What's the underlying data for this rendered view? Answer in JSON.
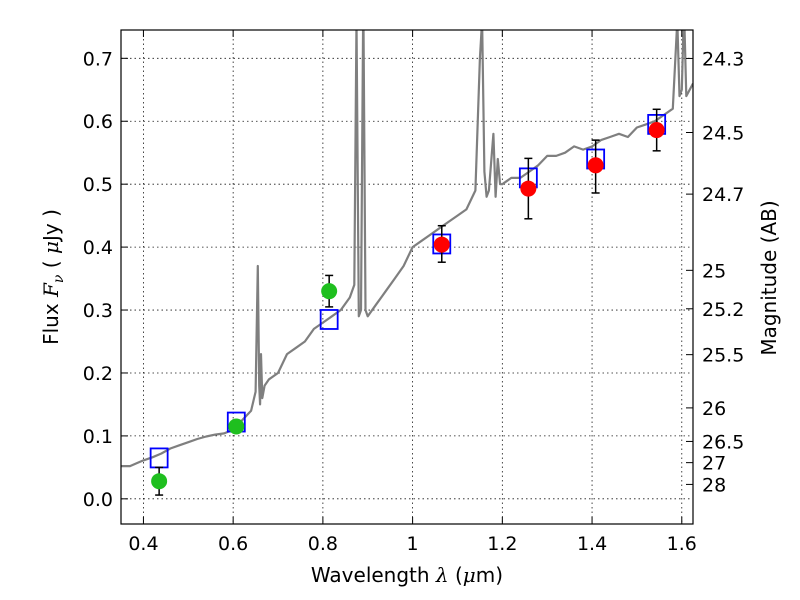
{
  "chart_data": {
    "type": "scatter",
    "xlabel_pre": "Wavelength  ",
    "xlabel_sym": "λ",
    "xlabel_unit_open": " (",
    "xlabel_unit_mu": "μ",
    "xlabel_unit_close": "m)",
    "ylabel_pre": "Flux  ",
    "ylabel_sym": "F",
    "ylabel_sub": "ν",
    "ylabel_unit_open": "  ( ",
    "ylabel_unit_mu": "μ",
    "ylabel_unit_close": "Jy )",
    "y2label": "Magnitude (AB)",
    "xlim": [
      0.35,
      1.625
    ],
    "ylim": [
      -0.04,
      0.745
    ],
    "x_ticks": [
      {
        "value": 0.4,
        "label": "0.4"
      },
      {
        "value": 0.6,
        "label": "0.6"
      },
      {
        "value": 0.8,
        "label": "0.8"
      },
      {
        "value": 1.0,
        "label": "1"
      },
      {
        "value": 1.2,
        "label": "1.2"
      },
      {
        "value": 1.4,
        "label": "1.4"
      },
      {
        "value": 1.6,
        "label": "1.6"
      }
    ],
    "y_ticks": [
      {
        "value": 0.0,
        "label": "0.0"
      },
      {
        "value": 0.1,
        "label": "0.1"
      },
      {
        "value": 0.2,
        "label": "0.2"
      },
      {
        "value": 0.3,
        "label": "0.3"
      },
      {
        "value": 0.4,
        "label": "0.4"
      },
      {
        "value": 0.5,
        "label": "0.5"
      },
      {
        "value": 0.6,
        "label": "0.6"
      },
      {
        "value": 0.7,
        "label": "0.7"
      }
    ],
    "y2_ticks": [
      {
        "label": "24.3",
        "flux": 0.6998
      },
      {
        "label": "24.5",
        "flux": 0.5821
      },
      {
        "label": "24.7",
        "flux": 0.4842
      },
      {
        "label": "25",
        "flux": 0.3631
      },
      {
        "label": "25.2",
        "flux": 0.302
      },
      {
        "label": "25.5",
        "flux": 0.2291
      },
      {
        "label": "26",
        "flux": 0.1445
      },
      {
        "label": "26.5",
        "flux": 0.0912
      },
      {
        "label": "27",
        "flux": 0.0575
      },
      {
        "label": "28",
        "flux": 0.0229
      }
    ],
    "series": [
      {
        "name": "model_spectrum",
        "kind": "line",
        "color": "#7f7f7f",
        "x": [
          0.35,
          0.37,
          0.39,
          0.4,
          0.42,
          0.44,
          0.46,
          0.48,
          0.5,
          0.52,
          0.54,
          0.56,
          0.58,
          0.6,
          0.62,
          0.64,
          0.65,
          0.655,
          0.658,
          0.66,
          0.662,
          0.665,
          0.67,
          0.68,
          0.7,
          0.72,
          0.74,
          0.76,
          0.78,
          0.8,
          0.82,
          0.84,
          0.86,
          0.87,
          0.875,
          0.88,
          0.885,
          0.89,
          0.895,
          0.9,
          0.92,
          0.94,
          0.96,
          0.98,
          1.0,
          1.02,
          1.04,
          1.06,
          1.08,
          1.1,
          1.12,
          1.14,
          1.15,
          1.155,
          1.16,
          1.165,
          1.17,
          1.18,
          1.185,
          1.19,
          1.195,
          1.2,
          1.22,
          1.24,
          1.26,
          1.28,
          1.3,
          1.32,
          1.34,
          1.36,
          1.38,
          1.4,
          1.42,
          1.44,
          1.46,
          1.48,
          1.5,
          1.52,
          1.54,
          1.56,
          1.58,
          1.59,
          1.595,
          1.6,
          1.605,
          1.61,
          1.625
        ],
        "values": [
          0.052,
          0.052,
          0.058,
          0.061,
          0.066,
          0.072,
          0.08,
          0.085,
          0.09,
          0.095,
          0.099,
          0.102,
          0.104,
          0.11,
          0.125,
          0.14,
          0.17,
          0.37,
          0.18,
          0.15,
          0.23,
          0.16,
          0.18,
          0.19,
          0.2,
          0.23,
          0.24,
          0.25,
          0.27,
          0.28,
          0.29,
          0.3,
          0.32,
          0.34,
          0.76,
          0.29,
          0.3,
          0.8,
          0.3,
          0.29,
          0.31,
          0.33,
          0.35,
          0.37,
          0.4,
          0.41,
          0.42,
          0.43,
          0.44,
          0.45,
          0.46,
          0.49,
          0.7,
          0.76,
          0.52,
          0.48,
          0.49,
          0.58,
          0.48,
          0.54,
          0.5,
          0.5,
          0.51,
          0.51,
          0.52,
          0.53,
          0.545,
          0.545,
          0.55,
          0.56,
          0.555,
          0.56,
          0.57,
          0.575,
          0.58,
          0.575,
          0.59,
          0.595,
          0.6,
          0.61,
          0.62,
          0.76,
          0.64,
          0.65,
          0.78,
          0.64,
          0.66
        ]
      },
      {
        "name": "synthetic_photometry",
        "kind": "open-square",
        "color": "#0000ff",
        "x": [
          0.435,
          0.607,
          0.814,
          1.065,
          1.258,
          1.408,
          1.544
        ],
        "values": [
          0.065,
          0.122,
          0.285,
          0.405,
          0.51,
          0.54,
          0.595
        ]
      },
      {
        "name": "observed_optical",
        "kind": "filled-circle",
        "color": "#1fbf1f",
        "x": [
          0.435,
          0.607,
          0.814
        ],
        "values": [
          0.028,
          0.115,
          0.33
        ],
        "err_low": [
          0.022,
          0.01,
          0.025
        ],
        "err_high": [
          0.022,
          0.01,
          0.025
        ]
      },
      {
        "name": "observed_nir",
        "kind": "filled-circle",
        "color": "#ff0000",
        "x": [
          1.065,
          1.258,
          1.408,
          1.544
        ],
        "values": [
          0.404,
          0.493,
          0.53,
          0.586
        ],
        "err_low": [
          0.028,
          0.048,
          0.044,
          0.033
        ],
        "err_high": [
          0.03,
          0.048,
          0.04,
          0.033
        ]
      }
    ],
    "grid": true
  }
}
